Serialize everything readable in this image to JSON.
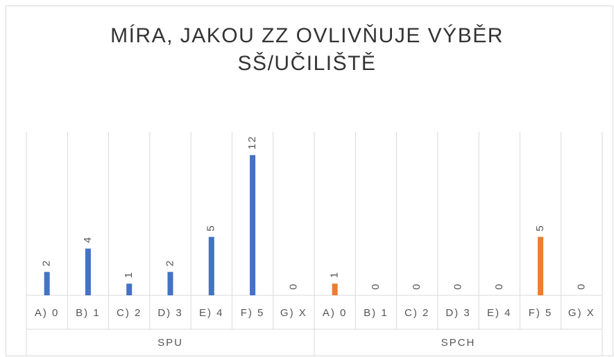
{
  "chart_data": {
    "type": "bar",
    "title": "MÍRA, JAKOU ZZ OVLIVŇUJE VÝBĚR SŠ/UČILIŠTĚ",
    "categories": [
      "A) 0",
      "B) 1",
      "C) 2",
      "D) 3",
      "E) 4",
      "F) 5",
      "G) X"
    ],
    "series": [
      {
        "name": "SPU",
        "color": "#4472c4",
        "values": [
          2,
          4,
          1,
          2,
          5,
          12,
          0
        ]
      },
      {
        "name": "SPCH",
        "color": "#ed7d31",
        "values": [
          1,
          0,
          0,
          0,
          0,
          5,
          0
        ]
      }
    ],
    "ylim": [
      0,
      14
    ],
    "grid": true
  }
}
